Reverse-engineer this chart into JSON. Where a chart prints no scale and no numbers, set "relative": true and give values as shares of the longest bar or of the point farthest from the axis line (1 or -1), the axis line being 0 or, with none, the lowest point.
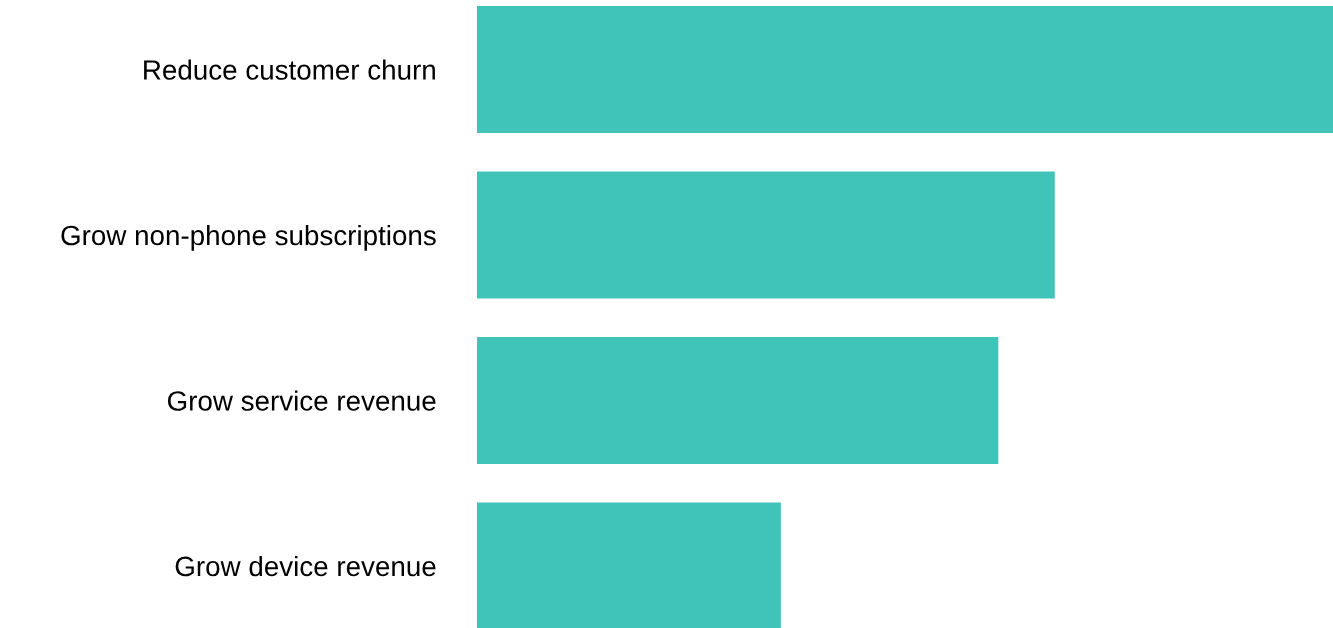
{
  "chart_data": {
    "type": "bar",
    "orientation": "horizontal",
    "relative": true,
    "categories": [
      "Reduce customer churn",
      "Grow non-phone subscriptions",
      "Grow service revenue",
      "Grow device revenue"
    ],
    "values": [
      1,
      0.675,
      0.609,
      0.355
    ],
    "color": "#40c4b9",
    "grid": false,
    "legend": false
  }
}
